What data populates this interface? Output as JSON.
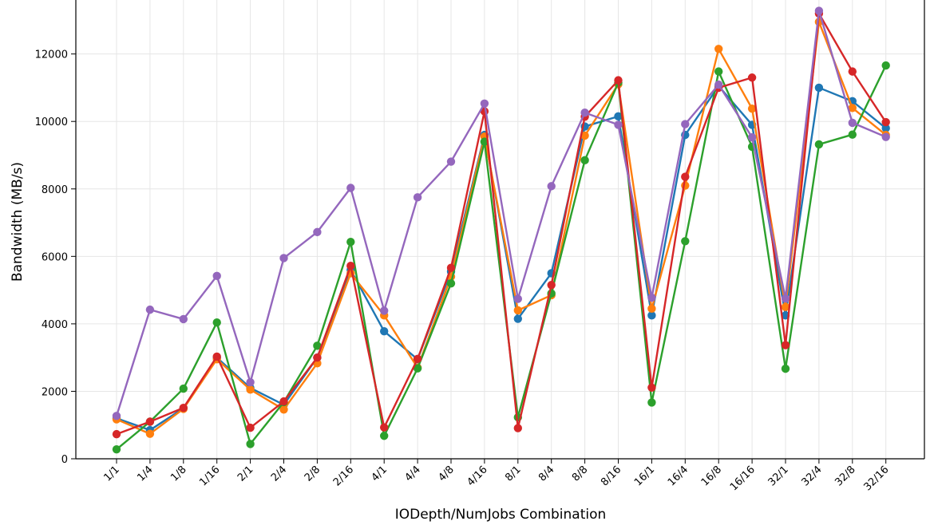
{
  "chart_data": {
    "type": "line",
    "title": "",
    "xlabel": "IODepth/NumJobs Combination",
    "ylabel": "Bandwidth (MB/s)",
    "ylim": [
      0,
      13600
    ],
    "yticks": [
      0,
      2000,
      4000,
      6000,
      8000,
      10000,
      12000
    ],
    "grid": true,
    "legend": "none",
    "categories": [
      "1/1",
      "1/4",
      "1/8",
      "1/16",
      "2/1",
      "2/4",
      "2/8",
      "2/16",
      "4/1",
      "4/4",
      "4/8",
      "4/16",
      "8/1",
      "8/4",
      "8/8",
      "8/16",
      "16/1",
      "16/4",
      "16/8",
      "16/16",
      "32/1",
      "32/4",
      "32/8",
      "32/16"
    ],
    "series": [
      {
        "color": "#1f77b4",
        "values": [
          1200,
          850,
          1500,
          3000,
          2100,
          1600,
          3000,
          5600,
          3780,
          2950,
          5550,
          9600,
          4150,
          5500,
          9850,
          10150,
          4250,
          9600,
          11050,
          9900,
          4250,
          11000,
          10600,
          9800
        ]
      },
      {
        "color": "#ff7f0e",
        "values": [
          1170,
          740,
          1480,
          2950,
          2050,
          1460,
          2830,
          5500,
          4250,
          2700,
          5400,
          9550,
          4400,
          4850,
          9580,
          11100,
          4450,
          8100,
          12150,
          10380,
          4500,
          12950,
          10400,
          9600
        ]
      },
      {
        "color": "#2ca02c",
        "values": [
          280,
          1100,
          2080,
          4040,
          440,
          1680,
          3350,
          6430,
          680,
          2680,
          5200,
          9400,
          1230,
          4900,
          8850,
          11150,
          1670,
          6450,
          11480,
          9250,
          2670,
          9320,
          9610,
          11660
        ]
      },
      {
        "color": "#d62728",
        "values": [
          730,
          1100,
          1510,
          3030,
          920,
          1700,
          3000,
          5720,
          930,
          2960,
          5660,
          10300,
          910,
          5150,
          10140,
          11220,
          2110,
          8360,
          11000,
          11300,
          3370,
          13200,
          11480,
          9980
        ]
      },
      {
        "color": "#9467bd",
        "values": [
          1270,
          4420,
          4140,
          5420,
          2270,
          5950,
          6720,
          8030,
          4390,
          7750,
          8810,
          10530,
          4740,
          8080,
          10260,
          9900,
          4780,
          9920,
          11090,
          9530,
          4750,
          13280,
          9960,
          9540
        ]
      }
    ]
  }
}
